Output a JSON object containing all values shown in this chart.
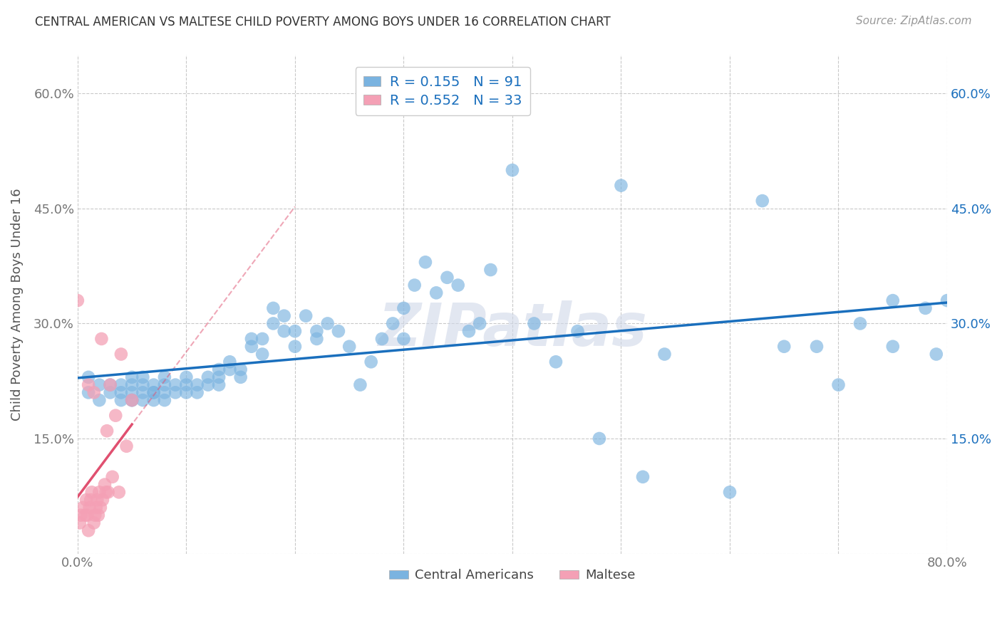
{
  "title": "CENTRAL AMERICAN VS MALTESE CHILD POVERTY AMONG BOYS UNDER 16 CORRELATION CHART",
  "source": "Source: ZipAtlas.com",
  "ylabel": "Child Poverty Among Boys Under 16",
  "xlabel": "",
  "watermark": "ZIPatlas",
  "xlim": [
    0,
    0.8
  ],
  "ylim": [
    0,
    0.65
  ],
  "xticks": [
    0.0,
    0.1,
    0.2,
    0.3,
    0.4,
    0.5,
    0.6,
    0.7,
    0.8
  ],
  "xticklabels": [
    "0.0%",
    "",
    "",
    "",
    "",
    "",
    "",
    "",
    "80.0%"
  ],
  "yticks": [
    0.0,
    0.15,
    0.3,
    0.45,
    0.6
  ],
  "yticklabels": [
    "",
    "15.0%",
    "30.0%",
    "45.0%",
    "60.0%"
  ],
  "blue_R": 0.155,
  "blue_N": 91,
  "pink_R": 0.552,
  "pink_N": 33,
  "blue_color": "#7ab3e0",
  "pink_color": "#f4a0b5",
  "blue_line_color": "#1a6fbd",
  "pink_line_color": "#e05070",
  "legend_label_blue": "Central Americans",
  "legend_label_pink": "Maltese",
  "blue_scatter_x": [
    0.01,
    0.01,
    0.02,
    0.02,
    0.03,
    0.03,
    0.04,
    0.04,
    0.04,
    0.05,
    0.05,
    0.05,
    0.05,
    0.05,
    0.06,
    0.06,
    0.06,
    0.06,
    0.07,
    0.07,
    0.07,
    0.07,
    0.08,
    0.08,
    0.08,
    0.08,
    0.09,
    0.09,
    0.1,
    0.1,
    0.1,
    0.11,
    0.11,
    0.12,
    0.12,
    0.13,
    0.13,
    0.13,
    0.14,
    0.14,
    0.15,
    0.15,
    0.16,
    0.16,
    0.17,
    0.17,
    0.18,
    0.18,
    0.19,
    0.19,
    0.2,
    0.2,
    0.21,
    0.22,
    0.22,
    0.23,
    0.24,
    0.25,
    0.26,
    0.27,
    0.28,
    0.29,
    0.3,
    0.3,
    0.31,
    0.32,
    0.33,
    0.34,
    0.35,
    0.36,
    0.37,
    0.38,
    0.4,
    0.42,
    0.44,
    0.46,
    0.48,
    0.5,
    0.52,
    0.54,
    0.6,
    0.65,
    0.68,
    0.7,
    0.72,
    0.75,
    0.78,
    0.79,
    0.8,
    0.63,
    0.75
  ],
  "blue_scatter_y": [
    0.21,
    0.23,
    0.22,
    0.2,
    0.22,
    0.21,
    0.2,
    0.22,
    0.21,
    0.2,
    0.21,
    0.22,
    0.23,
    0.2,
    0.2,
    0.21,
    0.22,
    0.23,
    0.2,
    0.21,
    0.22,
    0.21,
    0.2,
    0.22,
    0.21,
    0.23,
    0.22,
    0.21,
    0.22,
    0.21,
    0.23,
    0.22,
    0.21,
    0.23,
    0.22,
    0.22,
    0.23,
    0.24,
    0.24,
    0.25,
    0.23,
    0.24,
    0.27,
    0.28,
    0.26,
    0.28,
    0.3,
    0.32,
    0.29,
    0.31,
    0.27,
    0.29,
    0.31,
    0.29,
    0.28,
    0.3,
    0.29,
    0.27,
    0.22,
    0.25,
    0.28,
    0.3,
    0.32,
    0.28,
    0.35,
    0.38,
    0.34,
    0.36,
    0.35,
    0.29,
    0.3,
    0.37,
    0.5,
    0.3,
    0.25,
    0.29,
    0.15,
    0.48,
    0.1,
    0.26,
    0.08,
    0.27,
    0.27,
    0.22,
    0.3,
    0.33,
    0.32,
    0.26,
    0.33,
    0.46,
    0.27
  ],
  "pink_scatter_x": [
    0.0,
    0.002,
    0.003,
    0.005,
    0.007,
    0.008,
    0.009,
    0.01,
    0.01,
    0.011,
    0.012,
    0.013,
    0.015,
    0.015,
    0.016,
    0.017,
    0.018,
    0.019,
    0.02,
    0.021,
    0.022,
    0.023,
    0.025,
    0.026,
    0.027,
    0.028,
    0.03,
    0.032,
    0.035,
    0.038,
    0.04,
    0.045,
    0.05
  ],
  "pink_scatter_y": [
    0.33,
    0.04,
    0.05,
    0.06,
    0.05,
    0.07,
    0.05,
    0.03,
    0.22,
    0.06,
    0.07,
    0.08,
    0.04,
    0.21,
    0.05,
    0.06,
    0.07,
    0.05,
    0.08,
    0.06,
    0.28,
    0.07,
    0.09,
    0.08,
    0.16,
    0.08,
    0.22,
    0.1,
    0.18,
    0.08,
    0.26,
    0.14,
    0.2
  ]
}
